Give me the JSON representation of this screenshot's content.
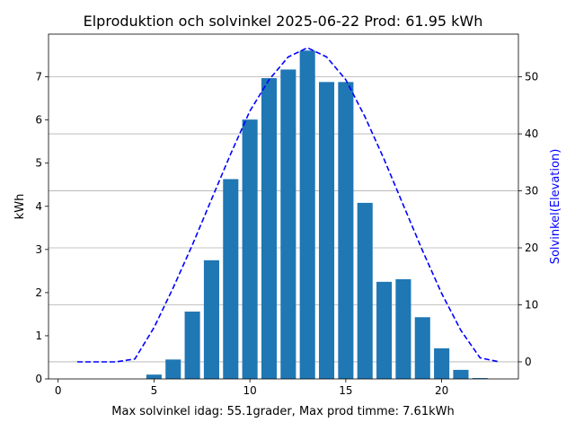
{
  "chart_data": {
    "type": "bar",
    "title": "Elproduktion och solvinkel 2025-06-22 Prod: 61.95 kWh",
    "xlabel": "Max solvinkel idag: 55.1grader, Max prod timme: 7.61kWh",
    "ylabel": "kWh",
    "y2label": "Solvinkel(Elevation)",
    "xlim": [
      -0.5,
      24.0
    ],
    "ylim": [
      0,
      7.99
    ],
    "y2lim": [
      -3,
      57.5
    ],
    "xticks": [
      0,
      5,
      10,
      15,
      20
    ],
    "yticks": [
      0,
      1,
      2,
      3,
      4,
      5,
      6,
      7
    ],
    "y2ticks": [
      0,
      10,
      20,
      30,
      40,
      50
    ],
    "grid": "right-axis horizontal",
    "bar_color": "#1f77b4",
    "line_color": "#0000ff",
    "series": [
      {
        "kind": "bar",
        "axis": "left",
        "x": [
          5,
          6,
          7,
          8,
          9,
          10,
          11,
          12,
          13,
          14,
          15,
          16,
          17,
          18,
          19,
          20,
          21,
          22
        ],
        "values": [
          0.1,
          0.45,
          1.56,
          2.75,
          4.63,
          6.01,
          6.97,
          7.17,
          7.61,
          6.88,
          6.88,
          4.08,
          2.25,
          2.31,
          1.43,
          0.71,
          0.21,
          0.02
        ]
      },
      {
        "kind": "line",
        "axis": "right",
        "style": "dashed",
        "x": [
          1,
          2,
          3,
          4,
          5,
          6,
          7,
          8,
          9,
          10,
          11,
          12,
          13,
          14,
          15,
          16,
          17,
          18,
          19,
          20,
          21,
          22,
          23
        ],
        "values": [
          0,
          0,
          0,
          0.5,
          6,
          13,
          20.5,
          28.5,
          36.5,
          44,
          49.5,
          53.5,
          55.1,
          53.5,
          49.5,
          43,
          35.5,
          27.5,
          19.5,
          12,
          5.5,
          0.7,
          0
        ]
      }
    ]
  }
}
